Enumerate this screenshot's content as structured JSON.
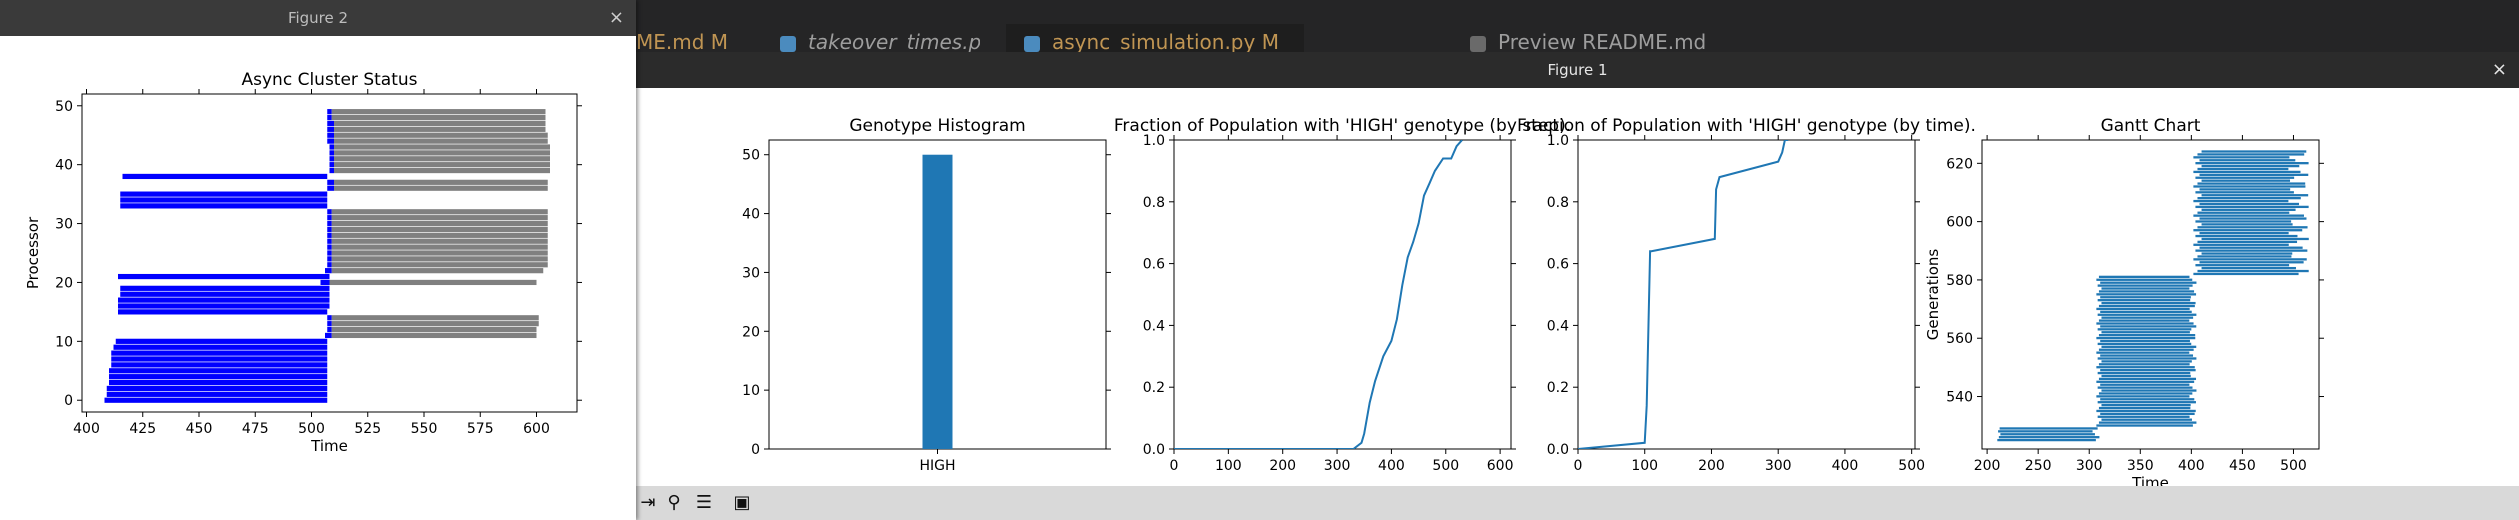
{
  "ide": {
    "tabs": [
      {
        "label": "ME.md M",
        "style": "modified"
      },
      {
        "label": "takeover_times.py",
        "style": "italic"
      },
      {
        "label": "async_simulation.py M",
        "style": "active"
      },
      {
        "label": "Preview README.md",
        "style": "preview"
      }
    ]
  },
  "figure1": {
    "title": "Figure 1",
    "close": "×",
    "toolbar": [
      "arrow-icon",
      "zoom-icon",
      "configure-icon",
      "save-icon"
    ],
    "charts": [
      {
        "type": "bar",
        "title": "Genotype Histogram",
        "categories": [
          "HIGH"
        ],
        "values": [
          50
        ],
        "ylim": [
          0,
          52.5
        ],
        "yticks": [
          "0",
          "10",
          "20",
          "30",
          "40",
          "50"
        ],
        "color": "#1f77b4"
      },
      {
        "type": "line",
        "title": "Fraction of Population with 'HIGH' genotype (by step).",
        "x": [
          0,
          200,
          330,
          345,
          350,
          360,
          370,
          385,
          400,
          410,
          420,
          430,
          440,
          450,
          460,
          470,
          480,
          495,
          510,
          520,
          530
        ],
        "y": [
          0,
          0,
          0,
          0.02,
          0.05,
          0.15,
          0.22,
          0.3,
          0.35,
          0.42,
          0.53,
          0.62,
          0.67,
          0.73,
          0.82,
          0.86,
          0.9,
          0.94,
          0.94,
          0.98,
          1.0
        ],
        "xlim": [
          0,
          620
        ],
        "ylim": [
          0,
          1.0
        ],
        "xticks": [
          "0",
          "100",
          "200",
          "300",
          "400",
          "500",
          "600"
        ],
        "yticks": [
          "0.0",
          "0.2",
          "0.4",
          "0.6",
          "0.8",
          "1.0"
        ],
        "color": "#1f77b4"
      },
      {
        "type": "line",
        "title": "Fraction of Population with 'HIGH' genotype (by time).",
        "x": [
          0,
          100,
          103,
          108,
          110,
          205,
          207,
          212,
          300,
          306,
          310,
          315
        ],
        "y": [
          0,
          0.02,
          0.14,
          0.64,
          0.64,
          0.68,
          0.84,
          0.88,
          0.93,
          0.96,
          1.0,
          1.0
        ],
        "xlim": [
          0,
          505
        ],
        "ylim": [
          0,
          1.0
        ],
        "xticks": [
          "0",
          "100",
          "200",
          "300",
          "400",
          "500"
        ],
        "yticks": [
          "0.0",
          "0.2",
          "0.4",
          "0.6",
          "0.8",
          "1.0"
        ],
        "color": "#1f77b4"
      },
      {
        "type": "gantt",
        "title": "Gantt Chart",
        "xlabel": "Time",
        "ylabel": "Generations",
        "xlim": [
          195,
          525
        ],
        "ylim": [
          522,
          628
        ],
        "xticks": [
          "200",
          "250",
          "300",
          "350",
          "400",
          "450",
          "500"
        ],
        "yticks": [
          "540",
          "560",
          "580",
          "600",
          "620"
        ],
        "color": "#1f77b4",
        "groups": [
          {
            "start_min": 210,
            "start_max": 213,
            "end_min": 303,
            "end_max": 310,
            "gen_from": 525,
            "gen_to": 529
          },
          {
            "start_min": 307,
            "start_max": 312,
            "end_min": 398,
            "end_max": 405,
            "gen_from": 530,
            "gen_to": 581
          },
          {
            "start_min": 402,
            "start_max": 410,
            "end_min": 495,
            "end_max": 515,
            "gen_from": 582,
            "gen_to": 624
          }
        ]
      }
    ]
  },
  "figure2": {
    "title": "Figure 2",
    "close": "×",
    "chart": {
      "type": "gantt",
      "title": "Async Cluster Status",
      "xlabel": "Time",
      "ylabel": "Processor",
      "xlim": [
        398,
        618
      ],
      "ylim": [
        -2,
        52
      ],
      "xticks": [
        "400",
        "425",
        "450",
        "475",
        "500",
        "525",
        "550",
        "575",
        "600"
      ],
      "yticks": [
        "0",
        "10",
        "20",
        "30",
        "40",
        "50"
      ],
      "colors": {
        "busy": "#0000ff",
        "idle": "#808080"
      },
      "rows": [
        {
          "p": 0,
          "b": [
            408,
            507
          ],
          "g": null
        },
        {
          "p": 1,
          "b": [
            409,
            507
          ],
          "g": null
        },
        {
          "p": 2,
          "b": [
            409,
            507
          ],
          "g": null
        },
        {
          "p": 3,
          "b": [
            410,
            507
          ],
          "g": null
        },
        {
          "p": 4,
          "b": [
            410,
            507
          ],
          "g": null
        },
        {
          "p": 5,
          "b": [
            410,
            507
          ],
          "g": null
        },
        {
          "p": 6,
          "b": [
            411,
            507
          ],
          "g": null
        },
        {
          "p": 7,
          "b": [
            411,
            507
          ],
          "g": null
        },
        {
          "p": 8,
          "b": [
            411,
            507
          ],
          "g": null
        },
        {
          "p": 9,
          "b": [
            412,
            507
          ],
          "g": null
        },
        {
          "p": 10,
          "b": [
            413,
            507
          ],
          "g": null
        },
        {
          "p": 11,
          "b": [
            506,
            509
          ],
          "g": [
            509,
            600
          ]
        },
        {
          "p": 12,
          "b": [
            507,
            509
          ],
          "g": [
            509,
            600
          ]
        },
        {
          "p": 13,
          "b": [
            507,
            509
          ],
          "g": [
            509,
            601
          ]
        },
        {
          "p": 14,
          "b": [
            507,
            509
          ],
          "g": [
            509,
            601
          ]
        },
        {
          "p": 15,
          "b": [
            414,
            507
          ],
          "g": null
        },
        {
          "p": 16,
          "b": [
            414,
            508
          ],
          "g": null
        },
        {
          "p": 17,
          "b": [
            414,
            508
          ],
          "g": null
        },
        {
          "p": 18,
          "b": [
            415,
            508
          ],
          "g": null
        },
        {
          "p": 19,
          "b": [
            415,
            508
          ],
          "g": null
        },
        {
          "p": 20,
          "b": [
            504,
            508
          ],
          "g": [
            508,
            600
          ]
        },
        {
          "p": 21,
          "b": [
            414,
            508
          ],
          "g": null
        },
        {
          "p": 22,
          "b": [
            506,
            509
          ],
          "g": [
            509,
            603
          ]
        },
        {
          "p": 23,
          "b": [
            507,
            509
          ],
          "g": [
            509,
            605
          ]
        },
        {
          "p": 24,
          "b": [
            507,
            509
          ],
          "g": [
            509,
            605
          ]
        },
        {
          "p": 25,
          "b": [
            507,
            509
          ],
          "g": [
            509,
            605
          ]
        },
        {
          "p": 26,
          "b": [
            507,
            509
          ],
          "g": [
            509,
            605
          ]
        },
        {
          "p": 27,
          "b": [
            507,
            509
          ],
          "g": [
            509,
            605
          ]
        },
        {
          "p": 28,
          "b": [
            507,
            509
          ],
          "g": [
            509,
            605
          ]
        },
        {
          "p": 29,
          "b": [
            507,
            509
          ],
          "g": [
            509,
            605
          ]
        },
        {
          "p": 30,
          "b": [
            507,
            509
          ],
          "g": [
            509,
            605
          ]
        },
        {
          "p": 31,
          "b": [
            507,
            509
          ],
          "g": [
            509,
            605
          ]
        },
        {
          "p": 32,
          "b": [
            507,
            509
          ],
          "g": [
            509,
            605
          ]
        },
        {
          "p": 33,
          "b": [
            415,
            507
          ],
          "g": null
        },
        {
          "p": 34,
          "b": [
            415,
            507
          ],
          "g": null
        },
        {
          "p": 35,
          "b": [
            415,
            507
          ],
          "g": null
        },
        {
          "p": 36,
          "b": [
            507,
            510
          ],
          "g": [
            510,
            605
          ]
        },
        {
          "p": 37,
          "b": [
            507,
            510
          ],
          "g": [
            510,
            605
          ]
        },
        {
          "p": 38,
          "b": [
            416,
            507
          ],
          "g": null
        },
        {
          "p": 39,
          "b": [
            508,
            510
          ],
          "g": [
            510,
            606
          ]
        },
        {
          "p": 40,
          "b": [
            508,
            510
          ],
          "g": [
            510,
            606
          ]
        },
        {
          "p": 41,
          "b": [
            508,
            510
          ],
          "g": [
            510,
            606
          ]
        },
        {
          "p": 42,
          "b": [
            508,
            510
          ],
          "g": [
            510,
            606
          ]
        },
        {
          "p": 43,
          "b": [
            508,
            510
          ],
          "g": [
            510,
            606
          ]
        },
        {
          "p": 44,
          "b": [
            507,
            510
          ],
          "g": [
            510,
            605
          ]
        },
        {
          "p": 45,
          "b": [
            507,
            510
          ],
          "g": [
            510,
            605
          ]
        },
        {
          "p": 46,
          "b": [
            507,
            510
          ],
          "g": [
            510,
            604
          ]
        },
        {
          "p": 47,
          "b": [
            507,
            510
          ],
          "g": [
            510,
            604
          ]
        },
        {
          "p": 48,
          "b": [
            507,
            509
          ],
          "g": [
            509,
            604
          ]
        },
        {
          "p": 49,
          "b": [
            507,
            509
          ],
          "g": [
            509,
            604
          ]
        }
      ]
    }
  }
}
